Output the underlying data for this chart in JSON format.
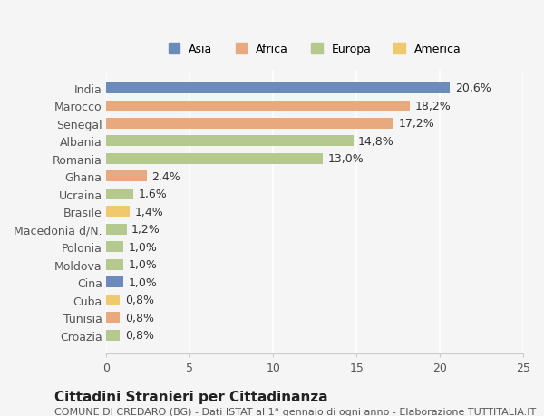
{
  "categories": [
    "India",
    "Marocco",
    "Senegal",
    "Albania",
    "Romania",
    "Ghana",
    "Ucraina",
    "Brasile",
    "Macedonia d/N.",
    "Polonia",
    "Moldova",
    "Cina",
    "Cuba",
    "Tunisia",
    "Croazia"
  ],
  "values": [
    20.6,
    18.2,
    17.2,
    14.8,
    13.0,
    2.4,
    1.6,
    1.4,
    1.2,
    1.0,
    1.0,
    1.0,
    0.8,
    0.8,
    0.8
  ],
  "labels": [
    "20,6%",
    "18,2%",
    "17,2%",
    "14,8%",
    "13,0%",
    "2,4%",
    "1,6%",
    "1,4%",
    "1,2%",
    "1,0%",
    "1,0%",
    "1,0%",
    "0,8%",
    "0,8%",
    "0,8%"
  ],
  "colors": [
    "#6b8cba",
    "#e8a97e",
    "#e8a97e",
    "#b5c98e",
    "#b5c98e",
    "#e8a97e",
    "#b5c98e",
    "#f0c96e",
    "#b5c98e",
    "#b5c98e",
    "#b5c98e",
    "#6b8cba",
    "#f0c96e",
    "#e8a97e",
    "#b5c98e"
  ],
  "continent_colors": {
    "Asia": "#6b8cba",
    "Africa": "#e8a97e",
    "Europa": "#b5c98e",
    "America": "#f0c96e"
  },
  "legend_order": [
    "Asia",
    "Africa",
    "Europa",
    "America"
  ],
  "xlim": [
    0,
    25
  ],
  "xticks": [
    0,
    5,
    10,
    15,
    20,
    25
  ],
  "title": "Cittadini Stranieri per Cittadinanza",
  "subtitle": "COMUNE DI CREDARO (BG) - Dati ISTAT al 1° gennaio di ogni anno - Elaborazione TUTTITALIA.IT",
  "background_color": "#f5f5f5",
  "bar_height": 0.6,
  "label_fontsize": 9,
  "tick_fontsize": 9,
  "title_fontsize": 11,
  "subtitle_fontsize": 8
}
